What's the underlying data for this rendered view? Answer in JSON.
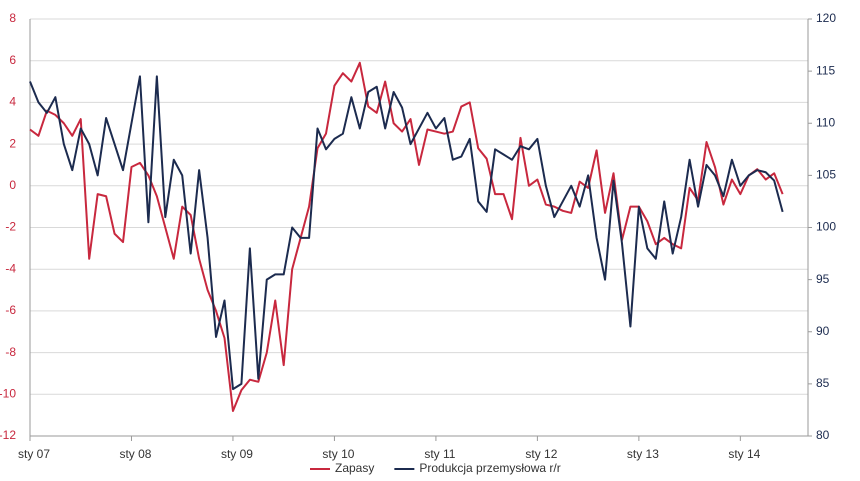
{
  "chart_data": {
    "type": "line",
    "categories": [
      "sty 07",
      null,
      null,
      null,
      null,
      null,
      null,
      null,
      null,
      null,
      null,
      null,
      "sty 08",
      null,
      null,
      null,
      null,
      null,
      null,
      null,
      null,
      null,
      null,
      null,
      "sty 09",
      null,
      null,
      null,
      null,
      null,
      null,
      null,
      null,
      null,
      null,
      null,
      "sty 10",
      null,
      null,
      null,
      null,
      null,
      null,
      null,
      null,
      null,
      null,
      null,
      "sty 11",
      null,
      null,
      null,
      null,
      null,
      null,
      null,
      null,
      null,
      null,
      null,
      "sty 12",
      null,
      null,
      null,
      null,
      null,
      null,
      null,
      null,
      null,
      null,
      null,
      "sty 13",
      null,
      null,
      null,
      null,
      null,
      null,
      null,
      null,
      null,
      null,
      null,
      "sty 14",
      null,
      null,
      null,
      null,
      null
    ],
    "series": [
      {
        "name": "Zapasy",
        "color": "#c8283e",
        "axis": "y",
        "values": [
          2.7,
          2.4,
          3.6,
          3.4,
          3.0,
          2.4,
          3.2,
          -3.5,
          -0.4,
          -0.5,
          -2.3,
          -2.7,
          0.9,
          1.1,
          0.5,
          -0.5,
          -2.0,
          -3.5,
          -1.0,
          -1.4,
          -3.5,
          -5.0,
          -6.0,
          -7.3,
          -10.8,
          -9.8,
          -9.3,
          -9.4,
          -8.0,
          -5.5,
          -8.6,
          -4.0,
          -2.5,
          -1.0,
          1.8,
          2.5,
          4.8,
          5.4,
          5.0,
          5.9,
          3.8,
          3.5,
          5.0,
          3.0,
          2.6,
          3.2,
          1.0,
          2.7,
          2.6,
          2.5,
          2.6,
          3.8,
          4.0,
          1.8,
          1.3,
          -0.4,
          -0.4,
          -1.6,
          2.3,
          0.0,
          0.3,
          -0.9,
          -1.0,
          -1.2,
          -1.3,
          0.2,
          -0.1,
          1.7,
          -1.3,
          0.6,
          -2.6,
          -1.0,
          -1.0,
          -1.7,
          -2.8,
          -2.5,
          -2.8,
          -3.0,
          -0.1,
          -0.7,
          2.1,
          0.9,
          -0.9,
          0.3,
          -0.4,
          0.5,
          0.8,
          0.3,
          0.6,
          -0.4
        ]
      },
      {
        "name": "Produkcja przemysłowa r/r",
        "color": "#1c2b4f",
        "axis": "y2",
        "values": [
          114,
          112,
          111,
          112.5,
          108,
          105.5,
          109.5,
          108,
          105,
          110.5,
          108,
          105.5,
          110,
          114.5,
          100.5,
          114.5,
          101,
          106.5,
          105,
          97.5,
          105.5,
          99,
          89.5,
          93,
          84.5,
          85,
          98,
          85.5,
          95,
          95.5,
          95.5,
          100,
          99,
          99,
          109.5,
          107.5,
          108.5,
          109,
          112.5,
          109.5,
          113,
          113.5,
          109.5,
          113,
          111.5,
          108,
          109.5,
          111,
          109.5,
          110.5,
          106.5,
          106.8,
          108.5,
          102.5,
          101.5,
          107.5,
          107,
          106.5,
          107.8,
          107.5,
          108.5,
          104,
          101,
          102.5,
          104,
          102,
          105,
          99,
          95,
          104.5,
          98.5,
          90.5,
          102,
          98,
          97,
          102.5,
          97.5,
          101,
          106.5,
          102,
          106,
          105,
          103,
          106.5,
          104,
          105,
          105.5,
          105.3,
          104.5,
          101.5
        ]
      }
    ],
    "ylim": [
      -12,
      8
    ],
    "yticks": [
      -12,
      -10,
      -8,
      -6,
      -4,
      -2,
      0,
      2,
      4,
      6,
      8
    ],
    "y2lim": [
      80,
      120
    ],
    "y2ticks": [
      80,
      85,
      90,
      95,
      100,
      105,
      110,
      115,
      120
    ],
    "grid": true
  }
}
